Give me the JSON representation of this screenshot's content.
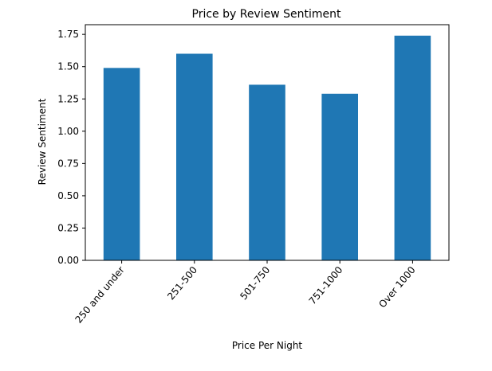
{
  "chart_data": {
    "type": "bar",
    "title": "Price by Review Sentiment",
    "xlabel": "Price Per Night",
    "ylabel": "Review Sentiment",
    "categories": [
      "250 and under",
      "251-500",
      "501-750",
      "751-1000",
      "Over 1000"
    ],
    "values": [
      1.49,
      1.6,
      1.36,
      1.29,
      1.74
    ],
    "ylim": [
      0,
      1.825
    ],
    "yticks": [
      "0.00",
      "0.25",
      "0.50",
      "0.75",
      "1.00",
      "1.25",
      "1.50",
      "1.75"
    ],
    "grid": false,
    "bar_color": "#1f77b4"
  }
}
